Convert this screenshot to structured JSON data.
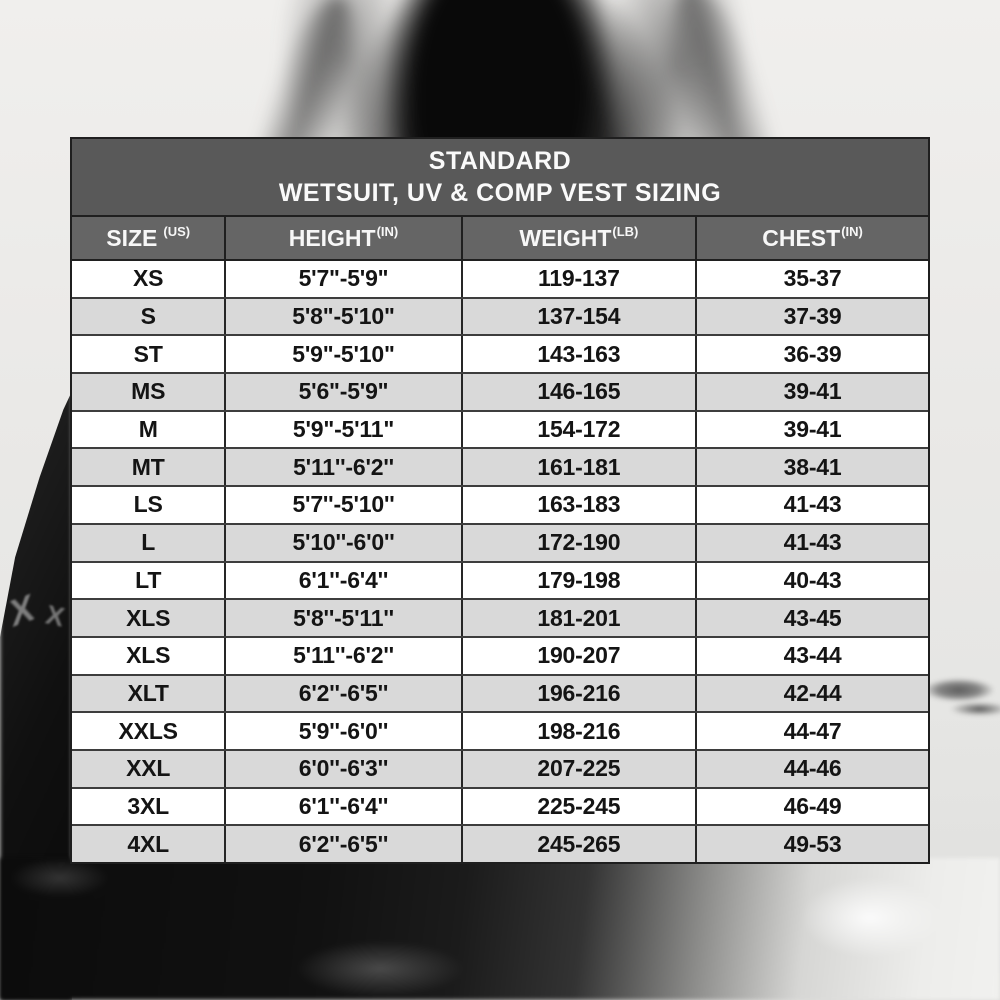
{
  "chart_data": {
    "type": "table",
    "title_lines": [
      "STANDARD",
      "WETSUIT, UV & COMP VEST SIZING"
    ],
    "columns": [
      {
        "label": "SIZE",
        "unit": "(US)"
      },
      {
        "label": "HEIGHT",
        "unit": "(IN)"
      },
      {
        "label": "WEIGHT",
        "unit": "(LB)"
      },
      {
        "label": "CHEST",
        "unit": "(IN)"
      }
    ],
    "rows": [
      [
        "XS",
        "5'7\"-5'9\"",
        "119-137",
        "35-37"
      ],
      [
        "S",
        "5'8\"-5'10\"",
        "137-154",
        "37-39"
      ],
      [
        "ST",
        "5'9\"-5'10\"",
        "143-163",
        "36-39"
      ],
      [
        "MS",
        "5'6\"-5'9\"",
        "146-165",
        "39-41"
      ],
      [
        "M",
        "5'9\"-5'11\"",
        "154-172",
        "39-41"
      ],
      [
        "MT",
        "5'11''-6'2''",
        "161-181",
        "38-41"
      ],
      [
        "LS",
        "5'7''-5'10''",
        "163-183",
        "41-43"
      ],
      [
        "L",
        "5'10''-6'0''",
        "172-190",
        "41-43"
      ],
      [
        "LT",
        "6'1''-6'4''",
        "179-198",
        "40-43"
      ],
      [
        "XLS",
        "5'8''-5'11''",
        "181-201",
        "43-45"
      ],
      [
        "XLS",
        "5'11''-6'2''",
        "190-207",
        "43-44"
      ],
      [
        "XLT",
        "6'2''-6'5''",
        "196-216",
        "42-44"
      ],
      [
        "XXLS",
        "5'9''-6'0''",
        "198-216",
        "44-47"
      ],
      [
        "XXL",
        "6'0''-6'3''",
        "207-225",
        "44-46"
      ],
      [
        "3XL",
        "6'1''-6'4''",
        "225-245",
        "46-49"
      ],
      [
        "4XL",
        "6'2''-6'5''",
        "245-265",
        "49-53"
      ]
    ]
  },
  "background": {
    "logo_marks": [
      "X",
      "X"
    ]
  },
  "colors": {
    "title_band_bg": "#595959",
    "column_header_bg": "#656565",
    "row_bg": "#ffffff",
    "row_alt_bg": "#d9d9d9",
    "border": "#1f1f1f",
    "header_text": "#f7f7f7",
    "cell_text": "#141414"
  }
}
